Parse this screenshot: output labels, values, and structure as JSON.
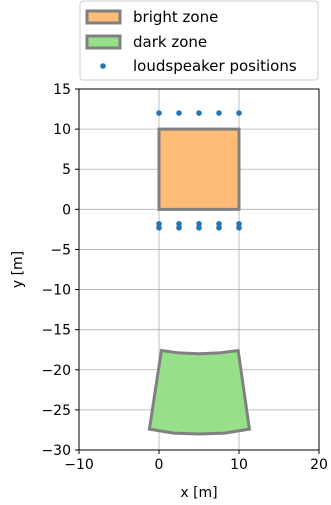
{
  "chart_data": {
    "type": "scatter",
    "title": "",
    "xlabel": "x [m]",
    "ylabel": "y [m]",
    "xlim": [
      -10,
      20
    ],
    "ylim": [
      -30,
      15
    ],
    "x_ticks": [
      -10,
      0,
      10,
      20
    ],
    "y_ticks": [
      -30,
      -25,
      -20,
      -15,
      -10,
      -5,
      0,
      5,
      10,
      15
    ],
    "x_tick_labels": [
      "−10",
      "0",
      "10",
      "20"
    ],
    "y_tick_labels": [
      "−30",
      "−25",
      "−20",
      "−15",
      "−10",
      "−5",
      "0",
      "5",
      "10",
      "15"
    ],
    "grid": true,
    "legend_position": "top (outside plot)",
    "colors": {
      "bright_zone_fill": "#ffbb78",
      "dark_zone_fill": "#98df8a",
      "zone_edge": "#808080",
      "loudspeaker": "#1f77b4",
      "grid": "#b0b0b0"
    },
    "legend": [
      {
        "label": "bright zone",
        "marker": "patch",
        "color": "#ffbb78"
      },
      {
        "label": "dark zone",
        "marker": "patch",
        "color": "#98df8a"
      },
      {
        "label": "loudspeaker positions",
        "marker": "dot",
        "color": "#1f77b4"
      }
    ],
    "bright_zone": {
      "shape": "rectangle",
      "vertices": [
        [
          0,
          0
        ],
        [
          10,
          0
        ],
        [
          10,
          10
        ],
        [
          0,
          10
        ]
      ]
    },
    "dark_zone": {
      "shape": "annular sector",
      "vertices_top_arc": [
        [
          0.3,
          -17.6
        ],
        [
          2.5,
          -17.9
        ],
        [
          5.0,
          -18.0
        ],
        [
          7.5,
          -17.9
        ],
        [
          9.9,
          -17.6
        ]
      ],
      "vertices_bottom_arc": [
        [
          11.3,
          -27.4
        ],
        [
          8.2,
          -27.9
        ],
        [
          5.0,
          -28.0
        ],
        [
          1.8,
          -27.9
        ],
        [
          -1.2,
          -27.4
        ]
      ]
    },
    "loudspeaker_positions": {
      "x": [
        0,
        2.5,
        5,
        7.5,
        10,
        0,
        2.5,
        5,
        7.5,
        10,
        0,
        2.5,
        5,
        7.5,
        10
      ],
      "y": [
        12,
        12,
        12,
        12,
        12,
        -1.8,
        -1.8,
        -1.8,
        -1.8,
        -1.8,
        -2.3,
        -2.3,
        -2.3,
        -2.3,
        -2.3
      ]
    }
  }
}
